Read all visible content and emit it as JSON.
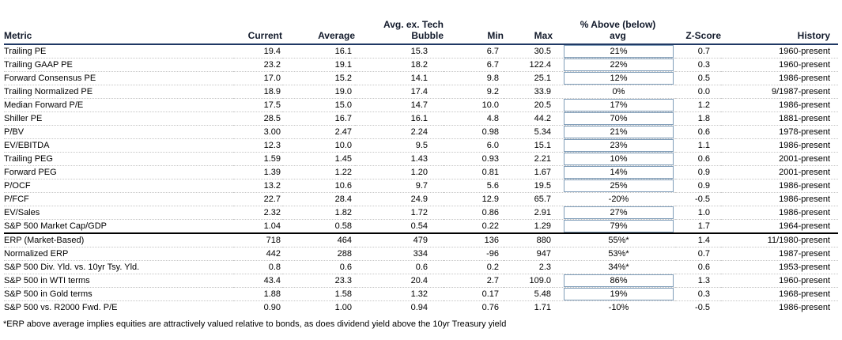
{
  "table": {
    "headers": {
      "metric": "Metric",
      "current": "Current",
      "average": "Average",
      "avg_ex_tech_line1": "Avg. ex. Tech",
      "avg_ex_tech_line2": "Bubble",
      "min": "Min",
      "max": "Max",
      "pct_above_line1": "% Above (below)",
      "pct_above_line2": "avg",
      "z_score": "Z-Score",
      "history": "History"
    },
    "rows": [
      {
        "metric": "Trailing PE",
        "current": "19.4",
        "average": "16.1",
        "avg_ex_tech": "15.3",
        "min": "6.7",
        "max": "30.5",
        "pct_above": "21%",
        "boxed": true,
        "z_score": "0.7",
        "history": "1960-present"
      },
      {
        "metric": "Trailing GAAP PE",
        "current": "23.2",
        "average": "19.1",
        "avg_ex_tech": "18.2",
        "min": "6.7",
        "max": "122.4",
        "pct_above": "22%",
        "boxed": true,
        "z_score": "0.3",
        "history": "1960-present"
      },
      {
        "metric": "Forward Consensus PE",
        "current": "17.0",
        "average": "15.2",
        "avg_ex_tech": "14.1",
        "min": "9.8",
        "max": "25.1",
        "pct_above": "12%",
        "boxed": true,
        "z_score": "0.5",
        "history": "1986-present"
      },
      {
        "metric": "Trailing Normalized PE",
        "current": "18.9",
        "average": "19.0",
        "avg_ex_tech": "17.4",
        "min": "9.2",
        "max": "33.9",
        "pct_above": "0%",
        "boxed": false,
        "z_score": "0.0",
        "history": "9/1987-present"
      },
      {
        "metric": "Median Forward P/E",
        "current": "17.5",
        "average": "15.0",
        "avg_ex_tech": "14.7",
        "min": "10.0",
        "max": "20.5",
        "pct_above": "17%",
        "boxed": true,
        "z_score": "1.2",
        "history": "1986-present"
      },
      {
        "metric": "Shiller PE",
        "current": "28.5",
        "average": "16.7",
        "avg_ex_tech": "16.1",
        "min": "4.8",
        "max": "44.2",
        "pct_above": "70%",
        "boxed": true,
        "z_score": "1.8",
        "history": "1881-present"
      },
      {
        "metric": "P/BV",
        "current": "3.00",
        "average": "2.47",
        "avg_ex_tech": "2.24",
        "min": "0.98",
        "max": "5.34",
        "pct_above": "21%",
        "boxed": true,
        "z_score": "0.6",
        "history": "1978-present"
      },
      {
        "metric": "EV/EBITDA",
        "current": "12.3",
        "average": "10.0",
        "avg_ex_tech": "9.5",
        "min": "6.0",
        "max": "15.1",
        "pct_above": "23%",
        "boxed": true,
        "z_score": "1.1",
        "history": "1986-present"
      },
      {
        "metric": "Trailing PEG",
        "current": "1.59",
        "average": "1.45",
        "avg_ex_tech": "1.43",
        "min": "0.93",
        "max": "2.21",
        "pct_above": "10%",
        "boxed": true,
        "z_score": "0.6",
        "history": "2001-present"
      },
      {
        "metric": "Forward PEG",
        "current": "1.39",
        "average": "1.22",
        "avg_ex_tech": "1.20",
        "min": "0.81",
        "max": "1.67",
        "pct_above": "14%",
        "boxed": true,
        "z_score": "0.9",
        "history": "2001-present"
      },
      {
        "metric": "P/OCF",
        "current": "13.2",
        "average": "10.6",
        "avg_ex_tech": "9.7",
        "min": "5.6",
        "max": "19.5",
        "pct_above": "25%",
        "boxed": true,
        "z_score": "0.9",
        "history": "1986-present"
      },
      {
        "metric": "P/FCF",
        "current": "22.7",
        "average": "28.4",
        "avg_ex_tech": "24.9",
        "min": "12.9",
        "max": "65.7",
        "pct_above": "-20%",
        "boxed": false,
        "z_score": "-0.5",
        "history": "1986-present"
      },
      {
        "metric": "EV/Sales",
        "current": "2.32",
        "average": "1.82",
        "avg_ex_tech": "1.72",
        "min": "0.86",
        "max": "2.91",
        "pct_above": "27%",
        "boxed": true,
        "z_score": "1.0",
        "history": "1986-present"
      },
      {
        "metric": "S&P 500 Market Cap/GDP",
        "current": "1.04",
        "average": "0.58",
        "avg_ex_tech": "0.54",
        "min": "0.22",
        "max": "1.29",
        "pct_above": "79%",
        "boxed": true,
        "z_score": "1.7",
        "history": "1964-present"
      },
      {
        "metric": "ERP (Market-Based)",
        "current": "718",
        "average": "464",
        "avg_ex_tech": "479",
        "min": "136",
        "max": "880",
        "pct_above": "55%*",
        "boxed": false,
        "z_score": "1.4",
        "history": "11/1980-present"
      },
      {
        "metric": "Normalized ERP",
        "current": "442",
        "average": "288",
        "avg_ex_tech": "334",
        "min": "-96",
        "max": "947",
        "pct_above": "53%*",
        "boxed": false,
        "z_score": "0.7",
        "history": "1987-present"
      },
      {
        "metric": "S&P 500 Div. Yld. vs. 10yr Tsy. Yld.",
        "current": "0.8",
        "average": "0.6",
        "avg_ex_tech": "0.6",
        "min": "0.2",
        "max": "2.3",
        "pct_above": "34%*",
        "boxed": false,
        "z_score": "0.6",
        "history": "1953-present"
      },
      {
        "metric": "S&P 500 in WTI terms",
        "current": "43.4",
        "average": "23.3",
        "avg_ex_tech": "20.4",
        "min": "2.7",
        "max": "109.0",
        "pct_above": "86%",
        "boxed": true,
        "z_score": "1.3",
        "history": "1960-present"
      },
      {
        "metric": "S&P 500 in Gold terms",
        "current": "1.88",
        "average": "1.58",
        "avg_ex_tech": "1.32",
        "min": "0.17",
        "max": "5.48",
        "pct_above": "19%",
        "boxed": true,
        "z_score": "0.3",
        "history": "1968-present"
      },
      {
        "metric": "S&P 500 vs. R2000 Fwd. P/E",
        "current": "0.90",
        "average": "1.00",
        "avg_ex_tech": "0.94",
        "min": "0.76",
        "max": "1.71",
        "pct_above": "-10%",
        "boxed": false,
        "z_score": "-0.5",
        "history": "1986-present"
      }
    ],
    "section_break_after_index": 13
  },
  "footnote": "*ERP above average implies equities are attractively valued relative to bonds, as does dividend yield above the 10yr Treasury yield",
  "colors": {
    "header_text": "#121a2b",
    "header_rule": "#1f3864",
    "section_rule": "#000000",
    "row_divider": "#c6c6c6",
    "pct_box_border": "#7f9db9"
  }
}
